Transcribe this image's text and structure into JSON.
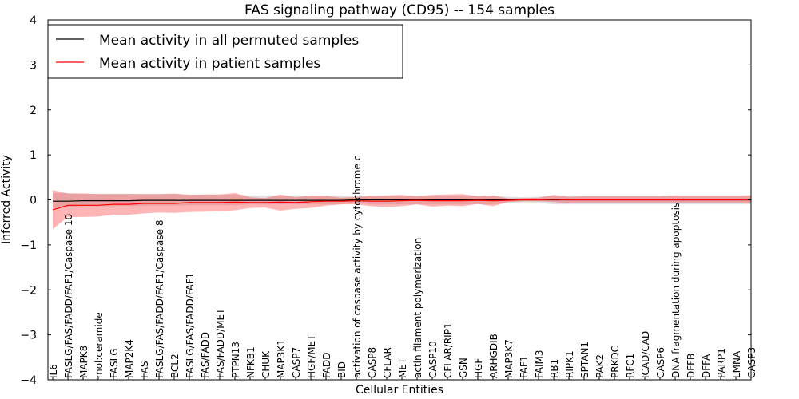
{
  "chart_data": {
    "type": "line",
    "title": "FAS signaling pathway (CD95) -- 154 samples",
    "xlabel": "Cellular Entities",
    "ylabel": "Inferred Activity",
    "ylim": [
      -4,
      4
    ],
    "yticks": [
      -4,
      -3,
      -2,
      -1,
      0,
      1,
      2,
      3,
      4
    ],
    "ytick_labels": [
      "−4",
      "−3",
      "−2",
      "−1",
      "0",
      "1",
      "2",
      "3",
      "4"
    ],
    "grid": false,
    "legend_position": "top-left",
    "categories": [
      "IL6",
      "FASLG/FAS/FADD/FAF1/Caspase 10",
      "MAPK8",
      "mol:ceramide",
      "FASLG",
      "MAP2K4",
      "FAS",
      "FASLG/FAS/FADD/FAF1/Caspase 8",
      "BCL2",
      "FASLG/FAS/FADD/FAF1",
      "FAS/FADD",
      "FAS/FADD/MET",
      "PTPN13",
      "NFKB1",
      "CHUK",
      "MAP3K1",
      "CASP7",
      "HGF/MET",
      "FADD",
      "BID",
      "activation of caspase activity by cytochrome c",
      "CASP8",
      "CFLAR",
      "MET",
      "actin filament polymerization",
      "CASP10",
      "CFLAR/RIP1",
      "GSN",
      "HGF",
      "ARHGDIB",
      "MAP3K7",
      "FAF1",
      "FAIM3",
      "RB1",
      "RIPK1",
      "SPTAN1",
      "PAK2",
      "PRKDC",
      "RFC1",
      "ICAD/CAD",
      "CASP6",
      "DNA fragmentation during apoptosis",
      "DFFB",
      "DFFA",
      "PARP1",
      "LMNA",
      "CASP3"
    ],
    "series": [
      {
        "name": "Mean activity in all permuted samples",
        "color": "#000000",
        "values": [
          -0.03,
          -0.03,
          -0.02,
          -0.02,
          -0.02,
          -0.02,
          -0.01,
          -0.01,
          -0.01,
          -0.01,
          -0.01,
          -0.01,
          -0.01,
          -0.01,
          -0.01,
          -0.01,
          -0.01,
          -0.01,
          -0.01,
          -0.01,
          0,
          0,
          0,
          0,
          0,
          0,
          0,
          0,
          0,
          0,
          0,
          0,
          0,
          0,
          0,
          0,
          0,
          0,
          0,
          0,
          0,
          0,
          0,
          0,
          0,
          0,
          0
        ],
        "band_low": [
          -0.15,
          -0.15,
          -0.14,
          -0.14,
          -0.14,
          -0.14,
          -0.13,
          -0.13,
          -0.13,
          -0.12,
          -0.12,
          -0.12,
          -0.12,
          -0.1,
          -0.1,
          -0.1,
          -0.1,
          -0.1,
          -0.1,
          -0.1,
          -0.07,
          -0.1,
          -0.1,
          -0.1,
          -0.1,
          -0.1,
          -0.1,
          -0.1,
          -0.1,
          -0.1,
          -0.07,
          -0.06,
          -0.07,
          -0.1,
          -0.1,
          -0.1,
          -0.1,
          -0.1,
          -0.1,
          -0.1,
          -0.1,
          -0.1,
          -0.1,
          -0.1,
          -0.1,
          -0.1,
          -0.1
        ],
        "band_high": [
          0.15,
          0.15,
          0.14,
          0.14,
          0.14,
          0.14,
          0.13,
          0.13,
          0.13,
          0.12,
          0.12,
          0.12,
          0.12,
          0.1,
          0.1,
          0.1,
          0.1,
          0.1,
          0.1,
          0.1,
          0.07,
          0.1,
          0.1,
          0.1,
          0.1,
          0.1,
          0.1,
          0.1,
          0.1,
          0.1,
          0.07,
          0.06,
          0.07,
          0.1,
          0.1,
          0.1,
          0.1,
          0.1,
          0.1,
          0.1,
          0.1,
          0.1,
          0.1,
          0.1,
          0.1,
          0.1,
          0.1
        ]
      },
      {
        "name": "Mean activity in patient samples",
        "color": "#ff0000",
        "values": [
          -0.22,
          -0.12,
          -0.12,
          -0.12,
          -0.1,
          -0.1,
          -0.08,
          -0.08,
          -0.08,
          -0.06,
          -0.06,
          -0.06,
          -0.05,
          -0.06,
          -0.06,
          -0.05,
          -0.06,
          -0.04,
          -0.03,
          -0.03,
          -0.02,
          -0.03,
          -0.03,
          -0.02,
          -0.01,
          -0.02,
          -0.02,
          -0.02,
          -0.01,
          -0.02,
          -0.01,
          0,
          0,
          0.01,
          0,
          0,
          0,
          0,
          0,
          0,
          0,
          0,
          0,
          0,
          0,
          0,
          0
        ],
        "band_low": [
          -0.65,
          -0.38,
          -0.38,
          -0.37,
          -0.33,
          -0.33,
          -0.3,
          -0.28,
          -0.29,
          -0.27,
          -0.26,
          -0.25,
          -0.23,
          -0.18,
          -0.17,
          -0.24,
          -0.2,
          -0.18,
          -0.13,
          -0.1,
          -0.1,
          -0.14,
          -0.16,
          -0.14,
          -0.1,
          -0.15,
          -0.13,
          -0.14,
          -0.09,
          -0.14,
          -0.05,
          -0.03,
          -0.03,
          -0.05,
          -0.08,
          -0.08,
          -0.08,
          -0.08,
          -0.08,
          -0.08,
          -0.08,
          -0.08,
          -0.08,
          -0.08,
          -0.08,
          -0.08,
          -0.08
        ],
        "band_high": [
          0.22,
          0.14,
          0.14,
          0.13,
          0.13,
          0.13,
          0.13,
          0.13,
          0.14,
          0.11,
          0.12,
          0.12,
          0.15,
          0.06,
          0.04,
          0.12,
          0.06,
          0.1,
          0.09,
          0.05,
          0.07,
          0.09,
          0.1,
          0.11,
          0.08,
          0.11,
          0.12,
          0.13,
          0.08,
          0.1,
          0.03,
          0.04,
          0.05,
          0.11,
          0.07,
          0.08,
          0.08,
          0.08,
          0.08,
          0.08,
          0.08,
          0.1,
          0.1,
          0.1,
          0.1,
          0.1,
          0.1
        ]
      }
    ]
  }
}
